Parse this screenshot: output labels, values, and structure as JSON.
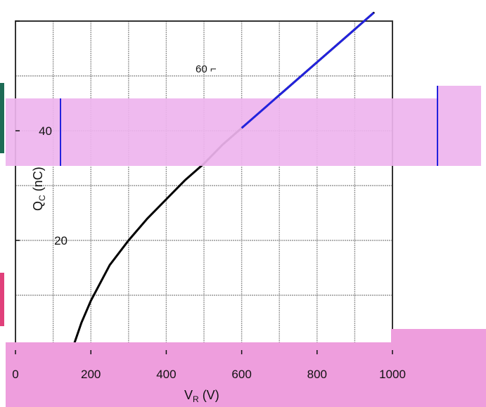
{
  "chart_data": {
    "type": "line",
    "title": "",
    "xlabel": "V",
    "xlabel_sub": "R",
    "xlabel_unit": "(V)",
    "ylabel": "Q",
    "ylabel_sub": "C",
    "ylabel_unit": "(nC)",
    "xlim": [
      0,
      1000
    ],
    "ylim": [
      0,
      60
    ],
    "x_ticks": [
      0,
      200,
      400,
      600,
      800,
      1000
    ],
    "y_ticks": [
      20,
      40,
      60
    ],
    "x_tick_labels": [
      "0",
      "200",
      "400",
      "600",
      "800",
      "1000"
    ],
    "y_tick_labels": [
      "20",
      "40",
      "60"
    ],
    "grid": true,
    "series": [
      {
        "x": [
          150,
          175,
          200,
          250,
          300,
          350,
          400,
          450,
          500,
          550,
          600,
          650,
          700,
          750,
          800,
          850,
          900,
          950
        ],
        "y": [
          0,
          5,
          9,
          15.5,
          20,
          24,
          27.5,
          31,
          34,
          37.5,
          40.5,
          43.5,
          46.5,
          49.5,
          52.5,
          55.5,
          58.5,
          61.5
        ]
      }
    ],
    "annotations": [
      {
        "text": "60 ⌐",
        "x": 500,
        "y": 60
      },
      {
        "text": "40",
        "x": 0,
        "y": 40
      }
    ],
    "overlay_color": "#ee9edd",
    "overlay_band_color": "#eeb4ee",
    "curve_color": "#000000",
    "curve_highlight_color": "#2222dd",
    "frame_color": "#2222dd"
  }
}
